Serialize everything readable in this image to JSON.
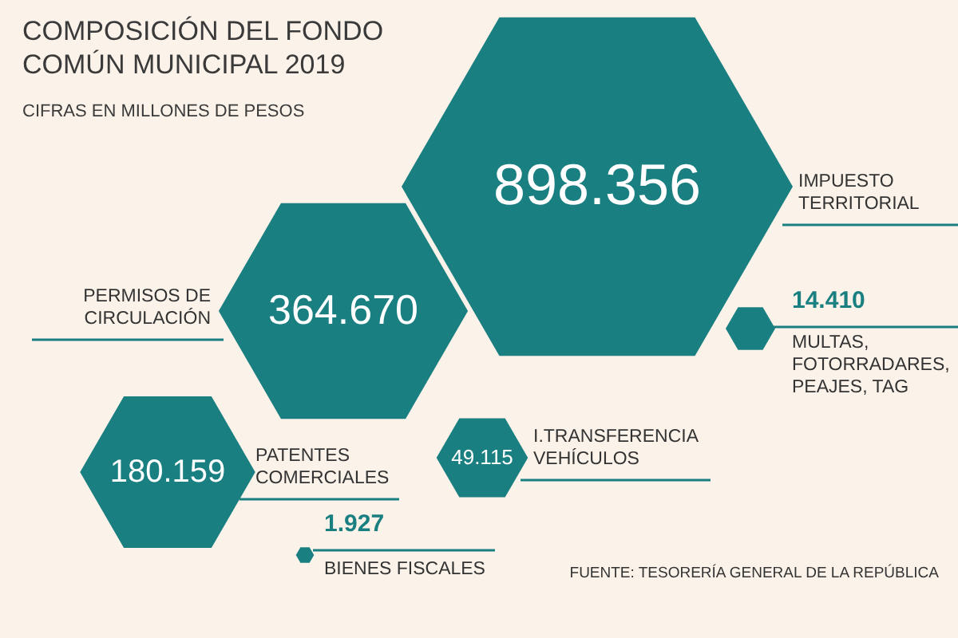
{
  "chart_data": {
    "type": "other",
    "title": "COMPOSICIÓN DEL FONDO COMÚN MUNICIPAL 2019",
    "subtitle": "CIFRAS EN MILLONES DE PESOS",
    "categories": [
      "IMPUESTO TERRITORIAL",
      "PERMISOS DE CIRCULACIÓN",
      "PATENTES COMERCIALES",
      "I.TRANSFERENCIA VEHÍCULOS",
      "MULTAS, FOTORRADARES, PEAJES, TAG",
      "BIENES FISCALES"
    ],
    "values": [
      898356,
      364670,
      180159,
      49115,
      14410,
      1927
    ],
    "value_labels": [
      "898.356",
      "364.670",
      "180.159",
      "49.115",
      "14.410",
      "1.927"
    ],
    "color": "#1a7f80",
    "annotations": [
      "FUENTE: TESORERÍA GENERAL DE LA REPÚBLICA"
    ]
  }
}
